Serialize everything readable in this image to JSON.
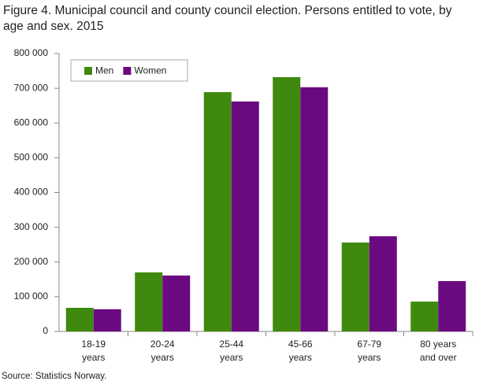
{
  "chart_data": {
    "type": "bar",
    "title": "Figure 4. Municipal council and county council election. Persons entitled to vote, by age and sex. 2015",
    "source": "Source: Statistics Norway.",
    "categories": [
      [
        "18-19",
        "years"
      ],
      [
        "20-24",
        "years"
      ],
      [
        "25-44",
        "years"
      ],
      [
        "45-66",
        "years"
      ],
      [
        "67-79",
        "years"
      ],
      [
        "80 years",
        "and over"
      ]
    ],
    "series": [
      {
        "name": "Men",
        "color": "#3f8a0e",
        "values": [
          68000,
          170000,
          689000,
          732000,
          256000,
          86000
        ]
      },
      {
        "name": "Women",
        "color": "#6b0a80",
        "values": [
          64000,
          161000,
          662000,
          703000,
          274000,
          145000
        ]
      }
    ],
    "ylim": [
      0,
      800000
    ],
    "yticks": [
      0,
      {
        "value": 100000,
        "label": "100 000"
      },
      {
        "value": 200000,
        "label": "200 000"
      },
      {
        "value": 300000,
        "label": "300 000"
      },
      {
        "value": 400000,
        "label": "400 000"
      },
      {
        "value": 500000,
        "label": "500 000"
      },
      {
        "value": 600000,
        "label": "600 000"
      },
      {
        "value": 700000,
        "label": "700 000"
      },
      {
        "value": 800000,
        "label": "800 000"
      }
    ],
    "legend": "top-left"
  }
}
